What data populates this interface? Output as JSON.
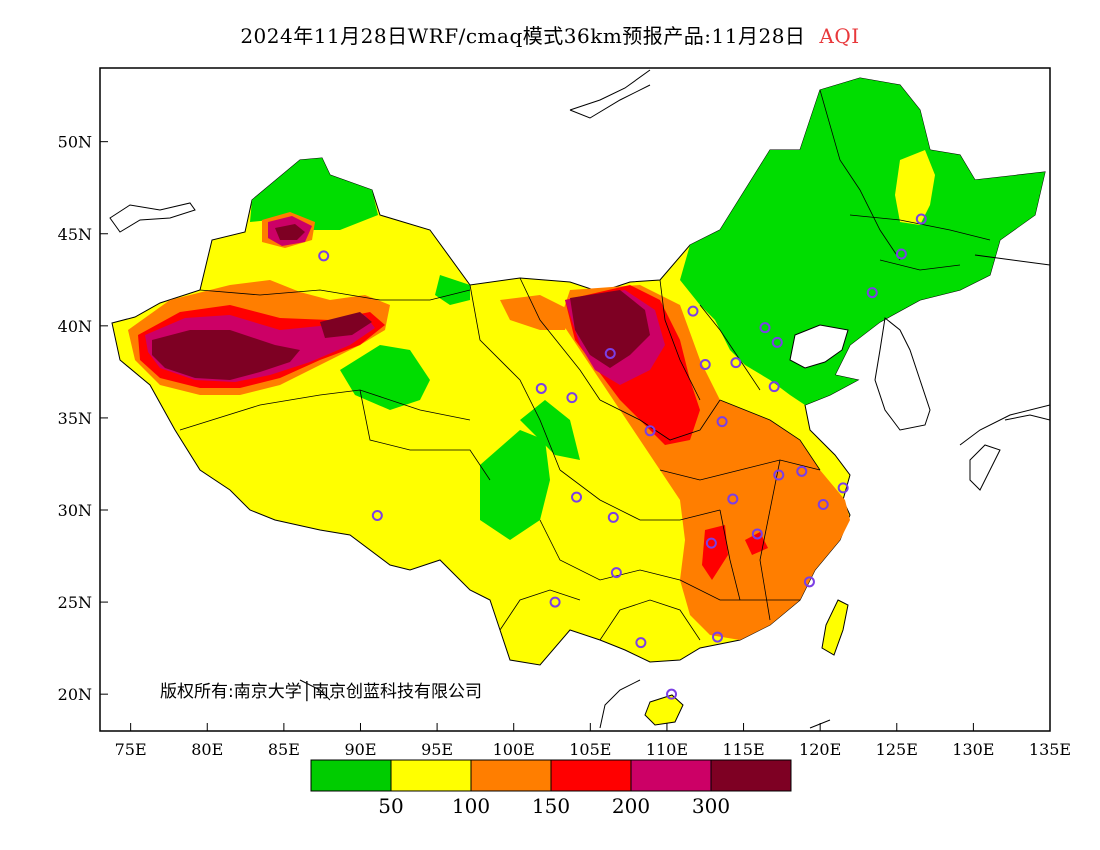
{
  "header": {
    "title": "2024年11月28日WRF/cmaq模式36km预报产品:11月28日",
    "variable": "AQI"
  },
  "map": {
    "lon_range": [
      73,
      135
    ],
    "lat_range": [
      18,
      54
    ],
    "lat_ticks": [
      "20N",
      "25N",
      "30N",
      "35N",
      "40N",
      "45N",
      "50N"
    ],
    "lon_ticks": [
      "75E",
      "80E",
      "85E",
      "90E",
      "95E",
      "100E",
      "105E",
      "110E",
      "115E",
      "120E",
      "125E",
      "130E",
      "135E"
    ],
    "copyright": "版权所有:南京大学│南京创蓝科技有限公司",
    "station_color": "#7b3fe4",
    "stations": [
      {
        "lon": 87.6,
        "lat": 43.8
      },
      {
        "lon": 91.1,
        "lat": 29.7
      },
      {
        "lon": 101.8,
        "lat": 36.6
      },
      {
        "lon": 103.8,
        "lat": 36.1
      },
      {
        "lon": 106.3,
        "lat": 38.5
      },
      {
        "lon": 111.7,
        "lat": 40.8
      },
      {
        "lon": 112.5,
        "lat": 37.9
      },
      {
        "lon": 114.5,
        "lat": 38.0
      },
      {
        "lon": 116.4,
        "lat": 39.9
      },
      {
        "lon": 117.2,
        "lat": 39.1
      },
      {
        "lon": 117.0,
        "lat": 36.7
      },
      {
        "lon": 113.6,
        "lat": 34.8
      },
      {
        "lon": 108.9,
        "lat": 34.3
      },
      {
        "lon": 104.1,
        "lat": 30.7
      },
      {
        "lon": 106.5,
        "lat": 29.6
      },
      {
        "lon": 106.7,
        "lat": 26.6
      },
      {
        "lon": 102.7,
        "lat": 25.0
      },
      {
        "lon": 108.3,
        "lat": 22.8
      },
      {
        "lon": 113.3,
        "lat": 23.1
      },
      {
        "lon": 110.3,
        "lat": 20.0
      },
      {
        "lon": 119.3,
        "lat": 26.1
      },
      {
        "lon": 115.9,
        "lat": 28.7
      },
      {
        "lon": 112.9,
        "lat": 28.2
      },
      {
        "lon": 114.3,
        "lat": 30.6
      },
      {
        "lon": 117.3,
        "lat": 31.9
      },
      {
        "lon": 118.8,
        "lat": 32.1
      },
      {
        "lon": 120.2,
        "lat": 30.3
      },
      {
        "lon": 121.5,
        "lat": 31.2
      },
      {
        "lon": 123.4,
        "lat": 41.8
      },
      {
        "lon": 125.3,
        "lat": 43.9
      },
      {
        "lon": 126.6,
        "lat": 45.8
      }
    ]
  },
  "legend": {
    "colors": [
      "#00cc00",
      "#ffff00",
      "#ff7e00",
      "#ff0000",
      "#cc0066",
      "#7e0023"
    ],
    "labels": [
      "50",
      "100",
      "150",
      "200",
      "300"
    ]
  },
  "region_colors": {
    "good": "#00dd00",
    "moderate": "#ffff00",
    "usg": "#ff7e00",
    "unhealthy": "#ff0000",
    "very_unhealthy": "#cc0066",
    "hazardous": "#7e0023"
  }
}
